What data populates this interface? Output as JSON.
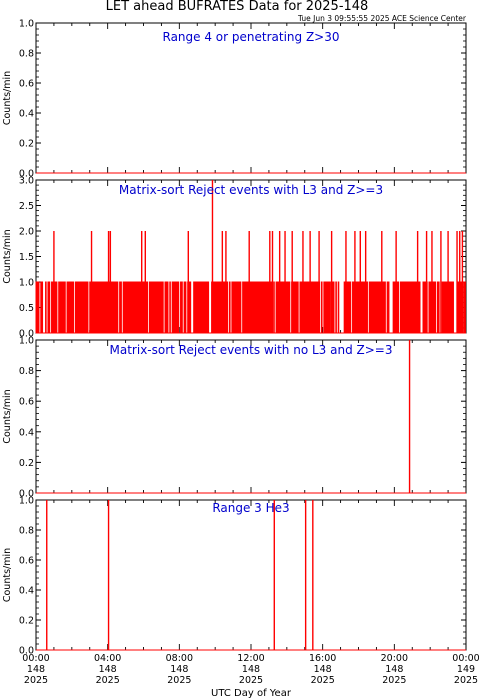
{
  "header": {
    "title": "LET ahead BUFRATES Data for 2025-148",
    "stamp": "Tue Jun  3 09:55:55 2025 ACE Science Center"
  },
  "colors": {
    "data": "#ff0000",
    "label": "#0000cc",
    "axis": "#000000"
  },
  "xaxis": {
    "label": "UTC Day of Year",
    "ticks": [
      {
        "time": "00:00",
        "day": "148",
        "year": "2025"
      },
      {
        "time": "04:00",
        "day": "148",
        "year": "2025"
      },
      {
        "time": "08:00",
        "day": "148",
        "year": "2025"
      },
      {
        "time": "12:00",
        "day": "148",
        "year": "2025"
      },
      {
        "time": "16:00",
        "day": "148",
        "year": "2025"
      },
      {
        "time": "20:00",
        "day": "148",
        "year": "2025"
      },
      {
        "time": "00:00",
        "day": "149",
        "year": "2025"
      }
    ]
  },
  "chart_data": [
    {
      "type": "line",
      "label": "Range 4 or  penetrating Z>30",
      "ylabel": "Counts/min",
      "ylim": [
        0,
        1.0
      ],
      "yticks": [
        "0.0",
        "0.2",
        "0.4",
        "0.6",
        "0.8",
        "1.0"
      ],
      "xlim_hours": [
        0,
        24
      ],
      "baseline": 0,
      "spikes": []
    },
    {
      "type": "line",
      "label": "Matrix-sort Reject events with L3 and Z>=3",
      "ylabel": "Counts/min",
      "ylim": [
        0,
        3.0
      ],
      "yticks": [
        "0.0",
        "0.5",
        "1.0",
        "1.5",
        "2.0",
        "2.5",
        "3.0"
      ],
      "xlim_hours": [
        0,
        24
      ],
      "baseline": 0,
      "noise": {
        "level": 1,
        "seed": 7,
        "density": 0.85
      },
      "spikes": [
        {
          "hour": 9.85,
          "value": 3
        },
        {
          "hour": 1.0,
          "value": 2
        },
        {
          "hour": 3.1,
          "value": 2
        },
        {
          "hour": 4.05,
          "value": 2
        },
        {
          "hour": 4.15,
          "value": 2
        },
        {
          "hour": 5.9,
          "value": 2
        },
        {
          "hour": 6.1,
          "value": 2
        },
        {
          "hour": 8.5,
          "value": 2
        },
        {
          "hour": 10.4,
          "value": 2
        },
        {
          "hour": 10.6,
          "value": 2
        },
        {
          "hour": 11.9,
          "value": 2
        },
        {
          "hour": 13.05,
          "value": 2
        },
        {
          "hour": 13.2,
          "value": 2
        },
        {
          "hour": 13.6,
          "value": 2
        },
        {
          "hour": 13.9,
          "value": 2
        },
        {
          "hour": 14.3,
          "value": 2
        },
        {
          "hour": 14.9,
          "value": 2
        },
        {
          "hour": 15.3,
          "value": 2
        },
        {
          "hour": 15.8,
          "value": 2
        },
        {
          "hour": 16.5,
          "value": 2
        },
        {
          "hour": 17.3,
          "value": 2
        },
        {
          "hour": 17.8,
          "value": 2
        },
        {
          "hour": 18.1,
          "value": 2
        },
        {
          "hour": 18.4,
          "value": 2
        },
        {
          "hour": 19.3,
          "value": 2
        },
        {
          "hour": 20.1,
          "value": 2
        },
        {
          "hour": 21.3,
          "value": 2
        },
        {
          "hour": 21.8,
          "value": 2
        },
        {
          "hour": 22.1,
          "value": 2
        },
        {
          "hour": 22.6,
          "value": 2
        },
        {
          "hour": 23.0,
          "value": 2
        },
        {
          "hour": 23.5,
          "value": 2
        },
        {
          "hour": 23.65,
          "value": 2
        },
        {
          "hour": 23.8,
          "value": 2
        }
      ]
    },
    {
      "type": "line",
      "label": "Matrix-sort Reject events with no L3 and Z>=3",
      "ylabel": "Counts/min",
      "ylim": [
        0,
        1.0
      ],
      "yticks": [
        "0.0",
        "0.2",
        "0.4",
        "0.6",
        "0.8",
        "1.0"
      ],
      "xlim_hours": [
        0,
        24
      ],
      "baseline": 0,
      "spikes": [
        {
          "hour": 20.85,
          "value": 1
        }
      ]
    },
    {
      "type": "line",
      "label": "Range 3 He3",
      "ylabel": "Counts/min",
      "ylim": [
        0,
        1.0
      ],
      "yticks": [
        "0.0",
        "0.2",
        "0.4",
        "0.6",
        "0.8",
        "1.0"
      ],
      "xlim_hours": [
        0,
        24
      ],
      "baseline": 0,
      "spikes": [
        {
          "hour": 0.6,
          "value": 1
        },
        {
          "hour": 4.05,
          "value": 1
        },
        {
          "hour": 13.3,
          "value": 1
        },
        {
          "hour": 15.05,
          "value": 1
        },
        {
          "hour": 15.45,
          "value": 1
        }
      ]
    }
  ]
}
